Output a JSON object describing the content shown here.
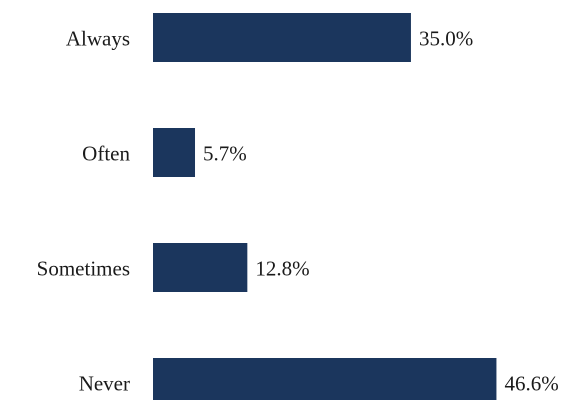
{
  "chart_data": {
    "type": "bar",
    "orientation": "horizontal",
    "categories": [
      "Always",
      "Often",
      "Sometimes",
      "Never"
    ],
    "values": [
      35.0,
      5.7,
      12.8,
      46.6
    ],
    "value_labels": [
      "35.0%",
      "5.7%",
      "12.8%",
      "46.6%"
    ],
    "unit": "%",
    "bar_color": "#1b365d",
    "xlim": [
      0,
      46.6
    ],
    "grid": false,
    "legend": "none"
  }
}
